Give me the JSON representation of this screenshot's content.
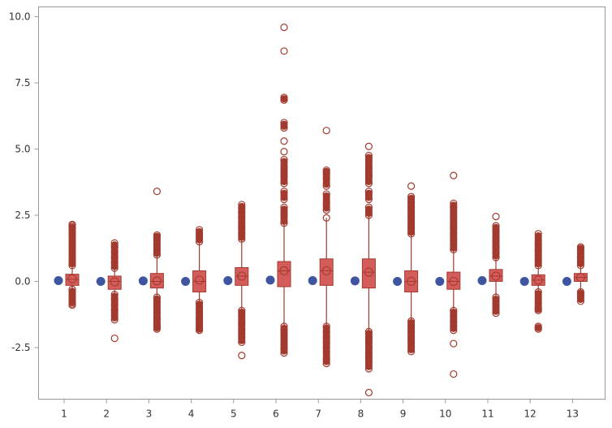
{
  "chart_data": {
    "type": "box",
    "title": "",
    "xlabel": "",
    "ylabel": "",
    "ylim": [
      -4.45,
      10.37
    ],
    "yticks": [
      "-2.5",
      "0.0",
      "2.5",
      "5.0",
      "7.5",
      "10.0"
    ],
    "categories": [
      "1",
      "2",
      "3",
      "4",
      "5",
      "6",
      "7",
      "8",
      "9",
      "10",
      "11",
      "12",
      "13"
    ],
    "grid": false,
    "colors": {
      "box_fill": "#d45c5a",
      "box_stroke": "#a23a2f",
      "dot": "#3f55a0",
      "axis": "#999999"
    },
    "dot_series": [
      0.03,
      0.0,
      0.02,
      0.0,
      0.03,
      0.05,
      0.03,
      0.02,
      0.0,
      0.0,
      0.03,
      0.0,
      0.0
    ],
    "boxes": [
      {
        "q1": -0.15,
        "median": 0.08,
        "q3": 0.27,
        "mean": 0.1,
        "whisker_low": -0.3,
        "whisker_high": 0.6,
        "outliers_high": [
          0.6,
          0.8,
          1.0,
          1.2,
          1.4,
          1.6,
          1.8,
          2.0,
          2.1,
          2.15
        ],
        "outliers_low": [
          -0.3,
          -0.45,
          -0.6,
          -0.75,
          -0.85,
          -0.9
        ]
      },
      {
        "q1": -0.3,
        "median": 0.0,
        "q3": 0.2,
        "mean": -0.02,
        "whisker_low": -0.5,
        "whisker_high": 0.5,
        "outliers_high": [
          0.5,
          0.7,
          0.9,
          1.1,
          1.3,
          1.45
        ],
        "outliers_low": [
          -0.5,
          -0.7,
          -0.9,
          -1.1,
          -1.3,
          -1.45,
          -2.15
        ]
      },
      {
        "q1": -0.25,
        "median": 0.0,
        "q3": 0.3,
        "mean": 0.02,
        "whisker_low": -0.6,
        "whisker_high": 1.0,
        "outliers_high": [
          1.0,
          1.2,
          1.4,
          1.55,
          1.65,
          1.75,
          3.4
        ],
        "outliers_low": [
          -0.6,
          -0.8,
          -1.0,
          -1.2,
          -1.4,
          -1.6,
          -1.7,
          -1.8
        ]
      },
      {
        "q1": -0.4,
        "median": 0.0,
        "q3": 0.4,
        "mean": 0.05,
        "whisker_low": -0.8,
        "whisker_high": 1.5,
        "outliers_high": [
          1.5,
          1.65,
          1.8,
          1.95
        ],
        "outliers_low": [
          -0.8,
          -1.0,
          -1.2,
          -1.4,
          -1.6,
          -1.75,
          -1.85
        ]
      },
      {
        "q1": -0.15,
        "median": 0.2,
        "q3": 0.52,
        "mean": 0.2,
        "whisker_low": -1.1,
        "whisker_high": 1.6,
        "outliers_high": [
          1.6,
          1.8,
          2.0,
          2.2,
          2.4,
          2.6,
          2.75,
          2.9
        ],
        "outliers_low": [
          -1.1,
          -1.3,
          -1.5,
          -1.6,
          -1.8,
          -1.95,
          -2.1,
          -2.3,
          -2.8
        ]
      },
      {
        "q1": -0.2,
        "median": 0.4,
        "q3": 0.75,
        "mean": 0.4,
        "whisker_low": -1.7,
        "whisker_high": 2.2,
        "outliers_high": [
          2.2,
          2.5,
          2.8,
          3.1,
          3.4,
          3.7,
          4.0,
          4.3,
          4.6,
          4.9,
          5.3,
          5.8,
          6.0,
          6.85,
          6.95,
          8.7,
          9.6
        ],
        "outliers_low": [
          -1.7,
          -1.85,
          -2.0,
          -2.2,
          -2.4,
          -2.55,
          -2.7
        ]
      },
      {
        "q1": -0.15,
        "median": 0.4,
        "q3": 0.85,
        "mean": 0.4,
        "whisker_low": -1.7,
        "whisker_high": 2.4,
        "outliers_high": [
          2.4,
          2.7,
          3.0,
          3.3,
          3.6,
          3.9,
          4.1,
          4.2,
          5.7
        ],
        "outliers_low": [
          -1.7,
          -1.9,
          -2.1,
          -2.3,
          -2.5,
          -2.7,
          -2.95,
          -3.1
        ]
      },
      {
        "q1": -0.25,
        "median": 0.35,
        "q3": 0.85,
        "mean": 0.35,
        "whisker_low": -1.9,
        "whisker_high": 2.5,
        "outliers_high": [
          2.5,
          2.8,
          3.1,
          3.4,
          3.7,
          4.0,
          4.3,
          4.6,
          4.75,
          5.1
        ],
        "outliers_low": [
          -1.9,
          -2.1,
          -2.3,
          -2.5,
          -2.7,
          -2.85,
          -3.05,
          -3.3,
          -4.2
        ]
      },
      {
        "q1": -0.4,
        "median": 0.0,
        "q3": 0.4,
        "mean": 0.0,
        "whisker_low": -1.5,
        "whisker_high": 1.8,
        "outliers_high": [
          1.8,
          2.0,
          2.2,
          2.4,
          2.6,
          2.8,
          3.0,
          3.2,
          3.6
        ],
        "outliers_low": [
          -1.5,
          -1.7,
          -1.9,
          -2.1,
          -2.3,
          -2.5,
          -2.65
        ]
      },
      {
        "q1": -0.3,
        "median": 0.0,
        "q3": 0.35,
        "mean": 0.0,
        "whisker_low": -1.1,
        "whisker_high": 1.2,
        "outliers_high": [
          1.2,
          1.4,
          1.6,
          1.8,
          2.0,
          2.2,
          2.4,
          2.6,
          2.8,
          2.95,
          4.0
        ],
        "outliers_low": [
          -1.1,
          -1.3,
          -1.5,
          -1.7,
          -1.85,
          -2.35,
          -3.5
        ]
      },
      {
        "q1": 0.0,
        "median": 0.2,
        "q3": 0.45,
        "mean": 0.2,
        "whisker_low": -0.6,
        "whisker_high": 0.9,
        "outliers_high": [
          0.9,
          1.1,
          1.3,
          1.5,
          1.7,
          1.9,
          2.1,
          2.45
        ],
        "outliers_low": [
          -0.6,
          -0.75,
          -0.9,
          -1.05,
          -1.2
        ]
      },
      {
        "q1": -0.15,
        "median": 0.05,
        "q3": 0.25,
        "mean": 0.05,
        "whisker_low": -0.4,
        "whisker_high": 0.6,
        "outliers_high": [
          0.6,
          0.8,
          1.0,
          1.2,
          1.4,
          1.55,
          1.8
        ],
        "outliers_low": [
          -0.4,
          -0.6,
          -0.8,
          -1.0,
          -1.1,
          -1.7,
          -1.8
        ]
      },
      {
        "q1": 0.0,
        "median": 0.15,
        "q3": 0.3,
        "mean": 0.15,
        "whisker_low": -0.4,
        "whisker_high": 0.6,
        "outliers_high": [
          0.6,
          0.75,
          0.9,
          1.05,
          1.2,
          1.3
        ],
        "outliers_low": [
          -0.4,
          -0.5,
          -0.6,
          -0.75
        ]
      }
    ]
  }
}
